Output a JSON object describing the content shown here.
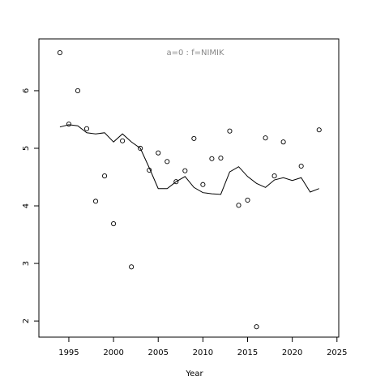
{
  "chart_data": {
    "type": "scatter+line",
    "title": "a=0  :  f=NIMIK",
    "x_label": "Year",
    "series": [
      {
        "type": "scatter",
        "color": "#000000",
        "x": [
          1994,
          1995,
          1996,
          1997,
          1998,
          1999,
          2000,
          2001,
          2002,
          2003,
          2004,
          2005,
          2006,
          2007,
          2008,
          2009,
          2010,
          2011,
          2012,
          2013,
          2014,
          2015,
          2016,
          2017,
          2018,
          2019,
          2021,
          2023
        ],
        "values": [
          6.66,
          5.42,
          6.0,
          5.34,
          4.08,
          4.52,
          3.69,
          5.13,
          2.94,
          5.0,
          4.62,
          4.92,
          4.77,
          4.42,
          4.61,
          5.17,
          4.37,
          4.82,
          4.83,
          5.3,
          4.01,
          4.1,
          1.9,
          5.18,
          4.52,
          5.11,
          4.69,
          5.32
        ]
      },
      {
        "type": "line",
        "color": "#000000",
        "x": [
          1994,
          1995,
          1996,
          1997,
          1998,
          1999,
          2000,
          2001,
          2002,
          2003,
          2004,
          2005,
          2006,
          2007,
          2008,
          2009,
          2010,
          2011,
          2012,
          2013,
          2014,
          2015,
          2016,
          2017,
          2018,
          2019,
          2020,
          2021,
          2022,
          2023
        ],
        "values": [
          5.37,
          5.41,
          5.39,
          5.27,
          5.25,
          5.27,
          5.11,
          5.25,
          5.11,
          5.0,
          4.66,
          4.3,
          4.3,
          4.42,
          4.51,
          4.32,
          4.23,
          4.21,
          4.2,
          4.59,
          4.68,
          4.51,
          4.39,
          4.32,
          4.45,
          4.49,
          4.44,
          4.49,
          4.24,
          4.3
        ]
      }
    ],
    "xlim": [
      1991.65,
      2025.2
    ],
    "xticks": [
      1995,
      2000,
      2005,
      2010,
      2015,
      2020,
      2025
    ],
    "ylim": [
      1.72,
      6.9
    ],
    "yticks": [
      2,
      3,
      4,
      5,
      6
    ]
  }
}
